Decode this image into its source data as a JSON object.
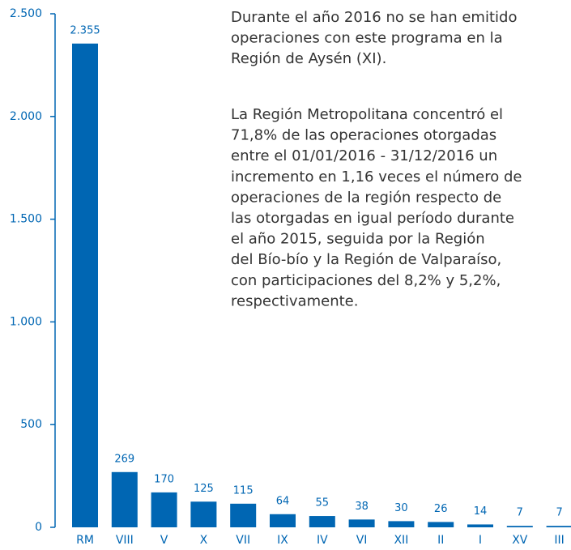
{
  "chart_data": {
    "type": "bar",
    "categories": [
      "RM",
      "VIII",
      "V",
      "X",
      "VII",
      "IX",
      "IV",
      "VI",
      "XII",
      "II",
      "I",
      "XV",
      "III"
    ],
    "values": [
      2355,
      269,
      170,
      125,
      115,
      64,
      55,
      38,
      30,
      26,
      14,
      7,
      7
    ],
    "value_labels": [
      "2.355",
      "269",
      "170",
      "125",
      "115",
      "64",
      "55",
      "38",
      "30",
      "26",
      "14",
      "7",
      "7"
    ],
    "color": "#0066b3",
    "ylim": [
      0,
      2500
    ],
    "yticks": [
      0,
      500,
      {
        "value": 1000,
        "label": "1.000"
      },
      {
        "value": 1500,
        "label": "1.500"
      },
      {
        "value": 2000,
        "label": "2.000"
      },
      {
        "value": 2500,
        "label": "2.500"
      }
    ],
    "grid": false,
    "annotations": [
      [
        "Durante el año 2016 no se han emitido",
        "operaciones con este programa en la",
        "Región de Aysén (XI)."
      ],
      [
        "La Región Metropolitana concentró el",
        "71,8% de las operaciones otorgadas",
        "entre el 01/01/2016 - 31/12/2016 un",
        "incremento en 1,16 veces el número de",
        "operaciones de la región respecto de",
        "las otorgadas en igual período durante",
        "el año 2015, seguida por la Región",
        "del Bío-bío y la Región de Valparaíso,",
        "con participaciones del 8,2% y 5,2%,",
        "respectivamente."
      ]
    ]
  }
}
